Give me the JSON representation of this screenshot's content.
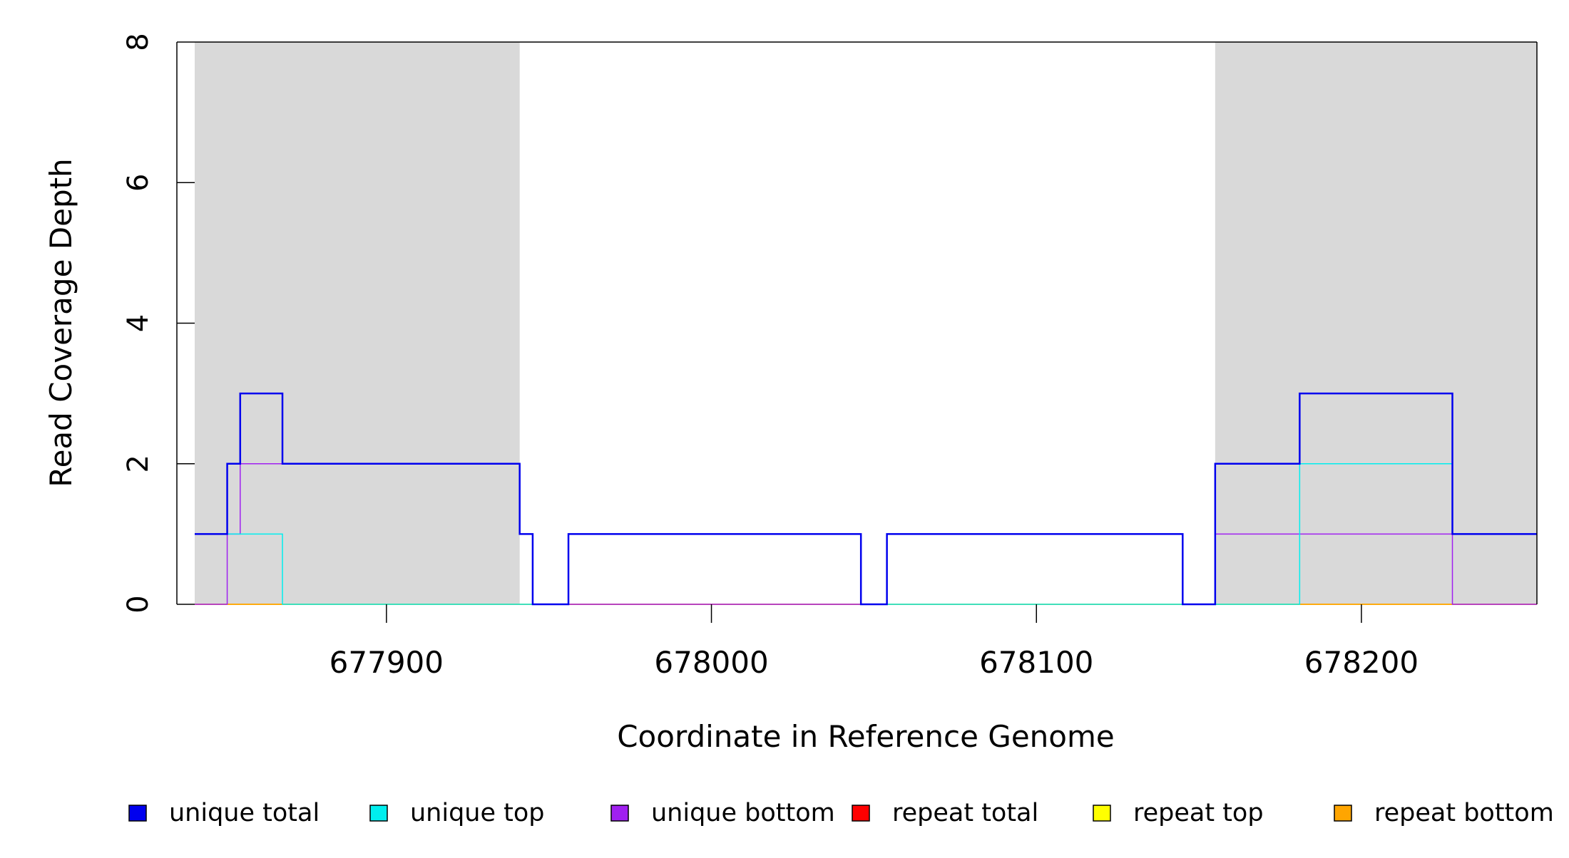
{
  "chart_data": {
    "type": "line",
    "title": "",
    "xlabel": "Coordinate in Reference Genome",
    "ylabel": "Read Coverage Depth",
    "xlim": [
      677841,
      678254
    ],
    "ylim": [
      0,
      8
    ],
    "x_ticks": [
      677900,
      678000,
      678100,
      678200
    ],
    "x_tick_labels": [
      "677900",
      "678000",
      "678100",
      "678200"
    ],
    "y_ticks": [
      0,
      2,
      4,
      6,
      8
    ],
    "y_tick_labels": [
      "0",
      "2",
      "4",
      "6",
      "8"
    ],
    "shaded_regions": [
      {
        "start": 677841,
        "end": 677941,
        "color": "#d9d9d9"
      },
      {
        "start": 678155,
        "end": 678254,
        "color": "#d9d9d9"
      }
    ],
    "grid": false,
    "legend_position": "bottom",
    "series": [
      {
        "name": "unique total",
        "color": "#0000ee",
        "line_width": 2.5,
        "x": [
          677841,
          677851,
          677855,
          677868,
          677941,
          677945,
          677956,
          678046,
          678054,
          678145,
          678155,
          678181,
          678228,
          678254
        ],
        "y": [
          1,
          2,
          3,
          2,
          1,
          0,
          1,
          0,
          1,
          0,
          2,
          3,
          1,
          1
        ]
      },
      {
        "name": "unique top",
        "color": "#00eeee",
        "line_width": 1.5,
        "x": [
          677841,
          677851,
          677868,
          677956,
          678046,
          678181,
          678228,
          678254
        ],
        "y": [
          1,
          1,
          0,
          1,
          0,
          2,
          1,
          1
        ]
      },
      {
        "name": "unique bottom",
        "color": "#a020f0",
        "line_width": 1.5,
        "x": [
          677841,
          677851,
          677855,
          677941,
          677945,
          678054,
          678145,
          678155,
          678228,
          678254
        ],
        "y": [
          0,
          1,
          2,
          1,
          0,
          1,
          0,
          1,
          0,
          0
        ]
      },
      {
        "name": "repeat total",
        "color": "#ff0000",
        "line_width": 1.5,
        "x": [
          677841,
          678254
        ],
        "y": [
          0,
          0
        ]
      },
      {
        "name": "repeat top",
        "color": "#ffff00",
        "line_width": 1.5,
        "x": [
          677841,
          678254
        ],
        "y": [
          0,
          0
        ]
      },
      {
        "name": "repeat bottom",
        "color": "#ffa500",
        "line_width": 1.5,
        "x": [
          677841,
          678254
        ],
        "y": [
          0,
          0
        ]
      }
    ],
    "legend": [
      {
        "label": "unique total",
        "color": "#0000ee"
      },
      {
        "label": "unique top",
        "color": "#00eeee"
      },
      {
        "label": "unique bottom",
        "color": "#a020f0"
      },
      {
        "label": "repeat total",
        "color": "#ff0000"
      },
      {
        "label": "repeat top",
        "color": "#ffff00"
      },
      {
        "label": "repeat bottom",
        "color": "#ffa500"
      }
    ]
  }
}
